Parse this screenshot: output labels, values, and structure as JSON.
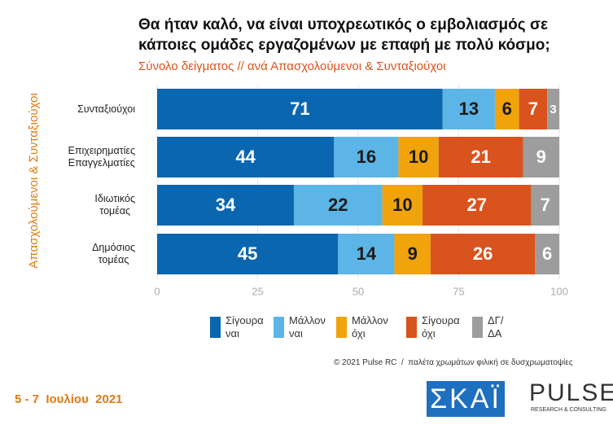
{
  "chart_data": {
    "type": "stacked-bar-horizontal",
    "title": "Θα ήταν καλό, να είναι υποχρεωτικός ο εμβολιασμός σε\nκάποιες ομάδες εργαζομένων με επαφή με πολύ κόσμο;",
    "subtitle": "Σύνολο δείγματος // ανά Απασχολούμενοι & Συνταξιούχοι",
    "y_axis_label": "Απασχολούμενοι & Συνταξιούχοι",
    "categories": [
      "Συνταξιούχοι",
      "Επιχειρηματίες\nΕπαγγελματίες",
      "Ιδιωτικός\nτομέας",
      "Δημόσιος\nτομέας"
    ],
    "series": [
      {
        "name": "Σίγουρα\nναι",
        "color": "#0b66b0",
        "label_color": "#ffffff",
        "values": [
          71,
          44,
          34,
          45
        ]
      },
      {
        "name": "Μάλλον\nναι",
        "color": "#5cb5e6",
        "label_color": "#1a1a1a",
        "values": [
          13,
          16,
          22,
          14
        ]
      },
      {
        "name": "Μάλλον\nόχι",
        "color": "#f0a30a",
        "label_color": "#1a1a1a",
        "values": [
          6,
          10,
          10,
          9
        ]
      },
      {
        "name": "Σίγουρα\nόχι",
        "color": "#d9531e",
        "label_color": "#ffffff",
        "values": [
          7,
          21,
          27,
          26
        ]
      },
      {
        "name": "ΔΓ/\nΔΑ",
        "color": "#9d9d9d",
        "label_color": "#ffffff",
        "values": [
          3,
          9,
          7,
          6
        ]
      }
    ],
    "xlim": [
      0,
      100
    ],
    "xticks": [
      0,
      25,
      50,
      75,
      100
    ],
    "grid": true,
    "footnote": "© 2021 Pulse RC  /  παλέτα χρωμάτων φιλική σε δυσχρωματοψίες",
    "date": "5 - 7  Ιουλίου  2021",
    "logo_left": "ΣΚΑΪ",
    "logo_right": "PULSE",
    "logo_right_sub": "RESEARCH & CONSULTING"
  }
}
